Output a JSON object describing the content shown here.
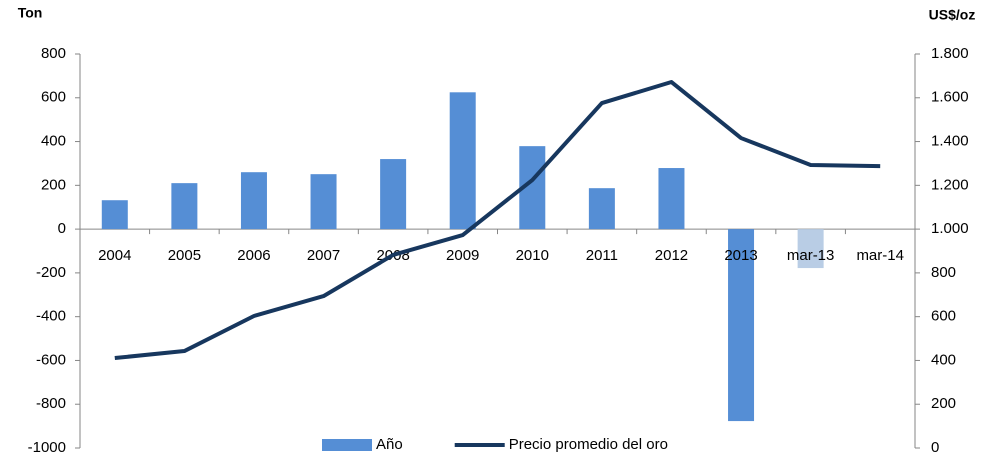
{
  "chart_data": {
    "type": "bar_line",
    "y_label": "Ton",
    "y2_label": "US$/oz",
    "categories": [
      "2004",
      "2005",
      "2006",
      "2007",
      "2008",
      "2009",
      "2010",
      "2011",
      "2012",
      "2013",
      "mar-13",
      "mar-14"
    ],
    "series": [
      {
        "name": "Año",
        "type": "bar",
        "color": "#558ed5",
        "point_colors": [
          "#558ed5",
          "#558ed5",
          "#558ed5",
          "#558ed5",
          "#558ed5",
          "#558ed5",
          "#558ed5",
          "#558ed5",
          "#558ed5",
          "#558ed5",
          "#b9cde5",
          "#558ed5"
        ],
        "values": [
          132,
          210,
          260,
          251,
          320,
          625,
          379,
          187,
          279,
          -877,
          -178,
          null
        ]
      },
      {
        "name": "Precio promedio del oro",
        "type": "line",
        "axis": "y2",
        "color": "#17375e",
        "values": [
          411,
          443,
          603,
          694,
          882,
          973,
          1224,
          1576,
          1672,
          1416,
          1293,
          1288
        ]
      }
    ],
    "ylim": [
      -1000,
      800
    ],
    "yticks": [
      -1000,
      -800,
      -600,
      -400,
      -200,
      0,
      200,
      400,
      600,
      800
    ],
    "y2lim": [
      0,
      1800
    ],
    "y2ticks": [
      0,
      200,
      400,
      600,
      800,
      {
        "value": 1000,
        "label": "1.000"
      },
      {
        "value": 1200,
        "label": "1.200"
      },
      {
        "value": 1400,
        "label": "1.400"
      },
      {
        "value": 1600,
        "label": "1.600"
      },
      {
        "value": 1800,
        "label": "1.800"
      }
    ],
    "legend": "bottom"
  }
}
